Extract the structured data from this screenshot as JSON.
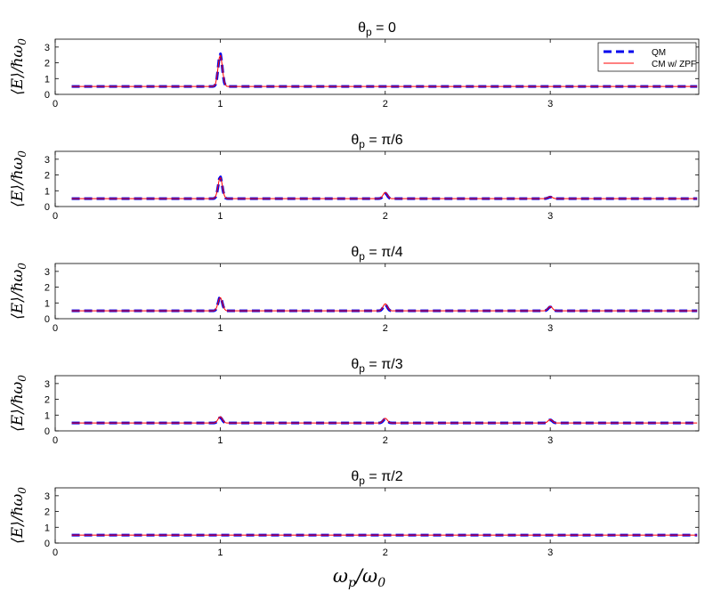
{
  "chart_data": [
    {
      "type": "line",
      "title": "θ",
      "title_sub": "p",
      "title_rest": " = 0",
      "ylabel": "⟨E⟩/ℏω",
      "ylabel_sub": "0",
      "xlim": [
        0,
        3.9
      ],
      "ylim": [
        0,
        3.5
      ],
      "xticks": [
        0,
        1,
        2,
        3
      ],
      "yticks": [
        0,
        1,
        2,
        3
      ],
      "grid": false,
      "legend": "top-right",
      "series": [
        {
          "name": "QM",
          "color": "#0000ee",
          "style": "dashed",
          "baseline": 0.5,
          "peaks": [
            {
              "x": 1,
              "y": 2.6
            }
          ]
        },
        {
          "name": "CM w/ ZPF",
          "color": "#ff0000",
          "style": "solid",
          "baseline": 0.5,
          "peaks": [
            {
              "x": 1,
              "y": 2.5
            }
          ]
        }
      ]
    },
    {
      "type": "line",
      "title": "θ",
      "title_sub": "p",
      "title_rest": " = π/6",
      "ylabel": "⟨E⟩/ℏω",
      "ylabel_sub": "0",
      "xlim": [
        0,
        3.9
      ],
      "ylim": [
        0,
        3.5
      ],
      "xticks": [
        0,
        1,
        2,
        3
      ],
      "yticks": [
        0,
        1,
        2,
        3
      ],
      "grid": false,
      "series": [
        {
          "name": "QM",
          "color": "#0000ee",
          "style": "dashed",
          "baseline": 0.5,
          "peaks": [
            {
              "x": 1,
              "y": 1.9
            },
            {
              "x": 2,
              "y": 0.85
            },
            {
              "x": 3,
              "y": 0.6
            }
          ]
        },
        {
          "name": "CM w/ ZPF",
          "color": "#ff0000",
          "style": "solid",
          "baseline": 0.5,
          "peaks": [
            {
              "x": 1,
              "y": 1.85
            },
            {
              "x": 2,
              "y": 0.9
            },
            {
              "x": 3,
              "y": 0.62
            }
          ]
        }
      ]
    },
    {
      "type": "line",
      "title": "θ",
      "title_sub": "p",
      "title_rest": " = π/4",
      "ylabel": "⟨E⟩/ℏω",
      "ylabel_sub": "0",
      "xlim": [
        0,
        3.9
      ],
      "ylim": [
        0,
        3.5
      ],
      "xticks": [
        0,
        1,
        2,
        3
      ],
      "yticks": [
        0,
        1,
        2,
        3
      ],
      "grid": false,
      "series": [
        {
          "name": "QM",
          "color": "#0000ee",
          "style": "dashed",
          "baseline": 0.5,
          "peaks": [
            {
              "x": 1,
              "y": 1.4
            },
            {
              "x": 2,
              "y": 0.9
            },
            {
              "x": 3,
              "y": 0.75
            }
          ]
        },
        {
          "name": "CM w/ ZPF",
          "color": "#ff0000",
          "style": "solid",
          "baseline": 0.5,
          "peaks": [
            {
              "x": 1,
              "y": 1.35
            },
            {
              "x": 2,
              "y": 0.95
            },
            {
              "x": 3,
              "y": 0.78
            }
          ]
        }
      ]
    },
    {
      "type": "line",
      "title": "θ",
      "title_sub": "p",
      "title_rest": " = π/3",
      "ylabel": "⟨E⟩/ℏω",
      "ylabel_sub": "0",
      "xlim": [
        0,
        3.9
      ],
      "ylim": [
        0,
        3.5
      ],
      "xticks": [
        0,
        1,
        2,
        3
      ],
      "yticks": [
        0,
        1,
        2,
        3
      ],
      "grid": false,
      "series": [
        {
          "name": "QM",
          "color": "#0000ee",
          "style": "dashed",
          "baseline": 0.5,
          "peaks": [
            {
              "x": 1,
              "y": 0.85
            },
            {
              "x": 2,
              "y": 0.75
            },
            {
              "x": 3,
              "y": 0.7
            }
          ]
        },
        {
          "name": "CM w/ ZPF",
          "color": "#ff0000",
          "style": "solid",
          "baseline": 0.5,
          "peaks": [
            {
              "x": 1,
              "y": 0.9
            },
            {
              "x": 2,
              "y": 0.8
            },
            {
              "x": 3,
              "y": 0.72
            }
          ]
        }
      ]
    },
    {
      "type": "line",
      "title": "θ",
      "title_sub": "p",
      "title_rest": " = π/2",
      "ylabel": "⟨E⟩/ℏω",
      "ylabel_sub": "0",
      "xlabel": "ω",
      "xlabel_sub": "p",
      "xlabel_rest": "/ω",
      "xlabel_sub2": "0",
      "xlim": [
        0,
        3.9
      ],
      "ylim": [
        0,
        3.5
      ],
      "xticks": [
        0,
        1,
        2,
        3
      ],
      "yticks": [
        0,
        1,
        2,
        3
      ],
      "grid": false,
      "series": [
        {
          "name": "QM",
          "color": "#0000ee",
          "style": "dashed",
          "baseline": 0.5,
          "peaks": []
        },
        {
          "name": "CM w/ ZPF",
          "color": "#ff0000",
          "style": "solid",
          "baseline": 0.5,
          "peaks": []
        }
      ]
    }
  ]
}
